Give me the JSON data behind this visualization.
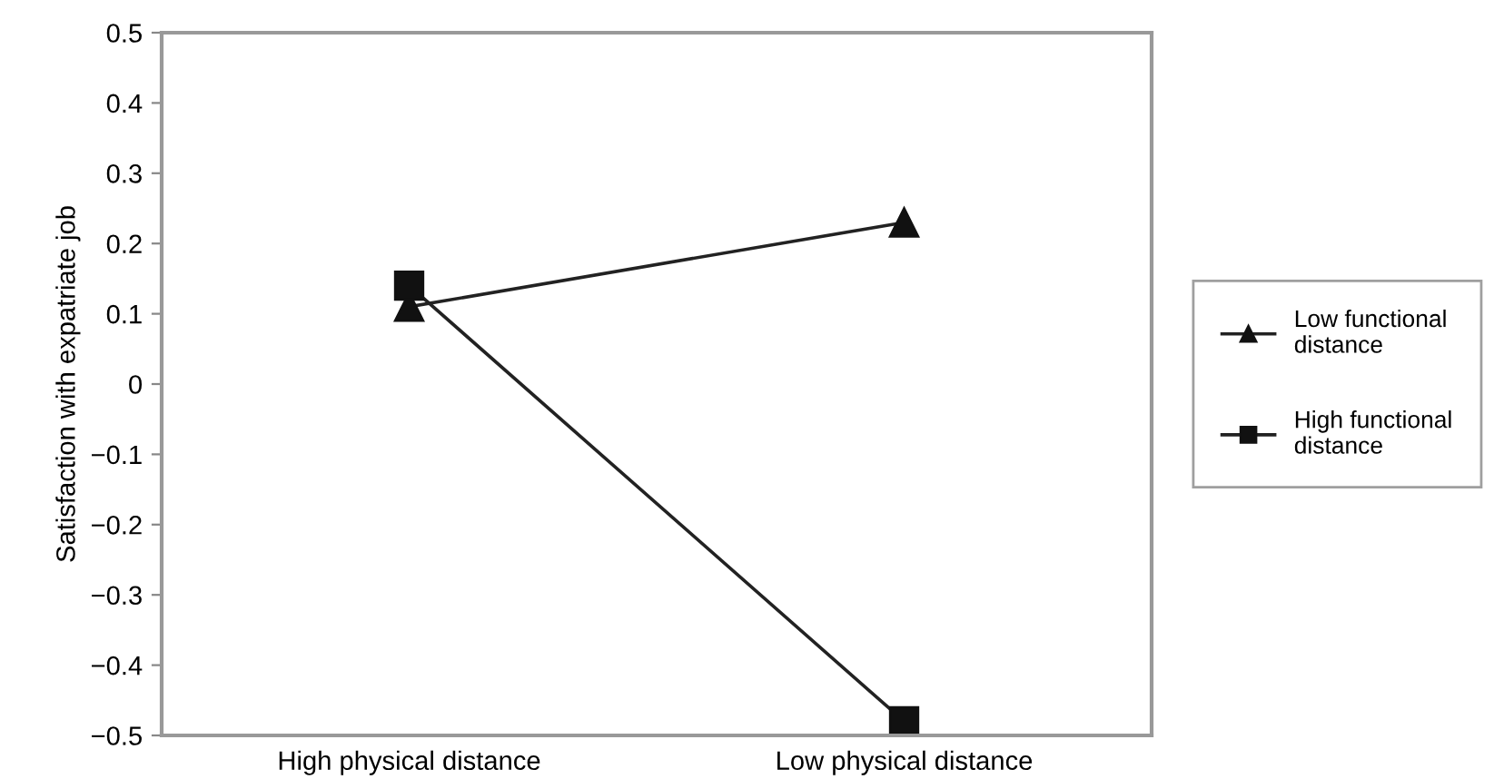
{
  "chart_data": {
    "type": "line",
    "ylabel": "Satisfaction with expatriate job",
    "categories": [
      "High physical distance",
      "Low physical distance"
    ],
    "series": [
      {
        "name": "Low functional distance",
        "color": "#222222",
        "marker": "triangle",
        "values": [
          0.11,
          0.23
        ]
      },
      {
        "name": "High functional distance",
        "color": "#222222",
        "marker": "square",
        "values": [
          0.14,
          -0.48
        ]
      }
    ],
    "ylim": [
      -0.5,
      0.5
    ],
    "yticks": [
      {
        "value": -0.5,
        "label": "−0.5"
      },
      {
        "value": -0.4,
        "label": "−0.4"
      },
      {
        "value": -0.3,
        "label": "−0.3"
      },
      {
        "value": -0.2,
        "label": "−0.2"
      },
      {
        "value": -0.1,
        "label": "−0.1"
      },
      0,
      0.1,
      0.2,
      0.3,
      0.4,
      0.5
    ],
    "grid": false,
    "legend": "right",
    "line_style": "solid"
  }
}
